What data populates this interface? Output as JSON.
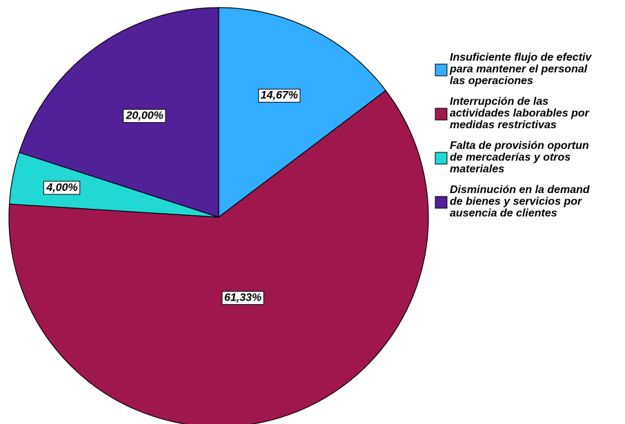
{
  "chart_data": {
    "type": "pie",
    "series": [
      {
        "name": "Insuficiente flujo de efectiv\npara mantener el personal\nlas operaciones",
        "color": "#33adff"
      },
      {
        "name": "Interrupción de las\nactividades laborables por\nmedidas restrictivas",
        "color": "#a0174e"
      },
      {
        "name": "Falta de provisión oportun\nde mercaderías y otros\nmateriales",
        "color": "#22d8d4"
      },
      {
        "name": "Disminución en la demand\nde bienes y servicios por\nausencia de clientes",
        "color": "#51219a"
      }
    ],
    "values": [
      14.67,
      61.33,
      4.0,
      20.0
    ],
    "value_labels": [
      "14,67%",
      "61,33%",
      "4,00%",
      "20,00%"
    ]
  }
}
